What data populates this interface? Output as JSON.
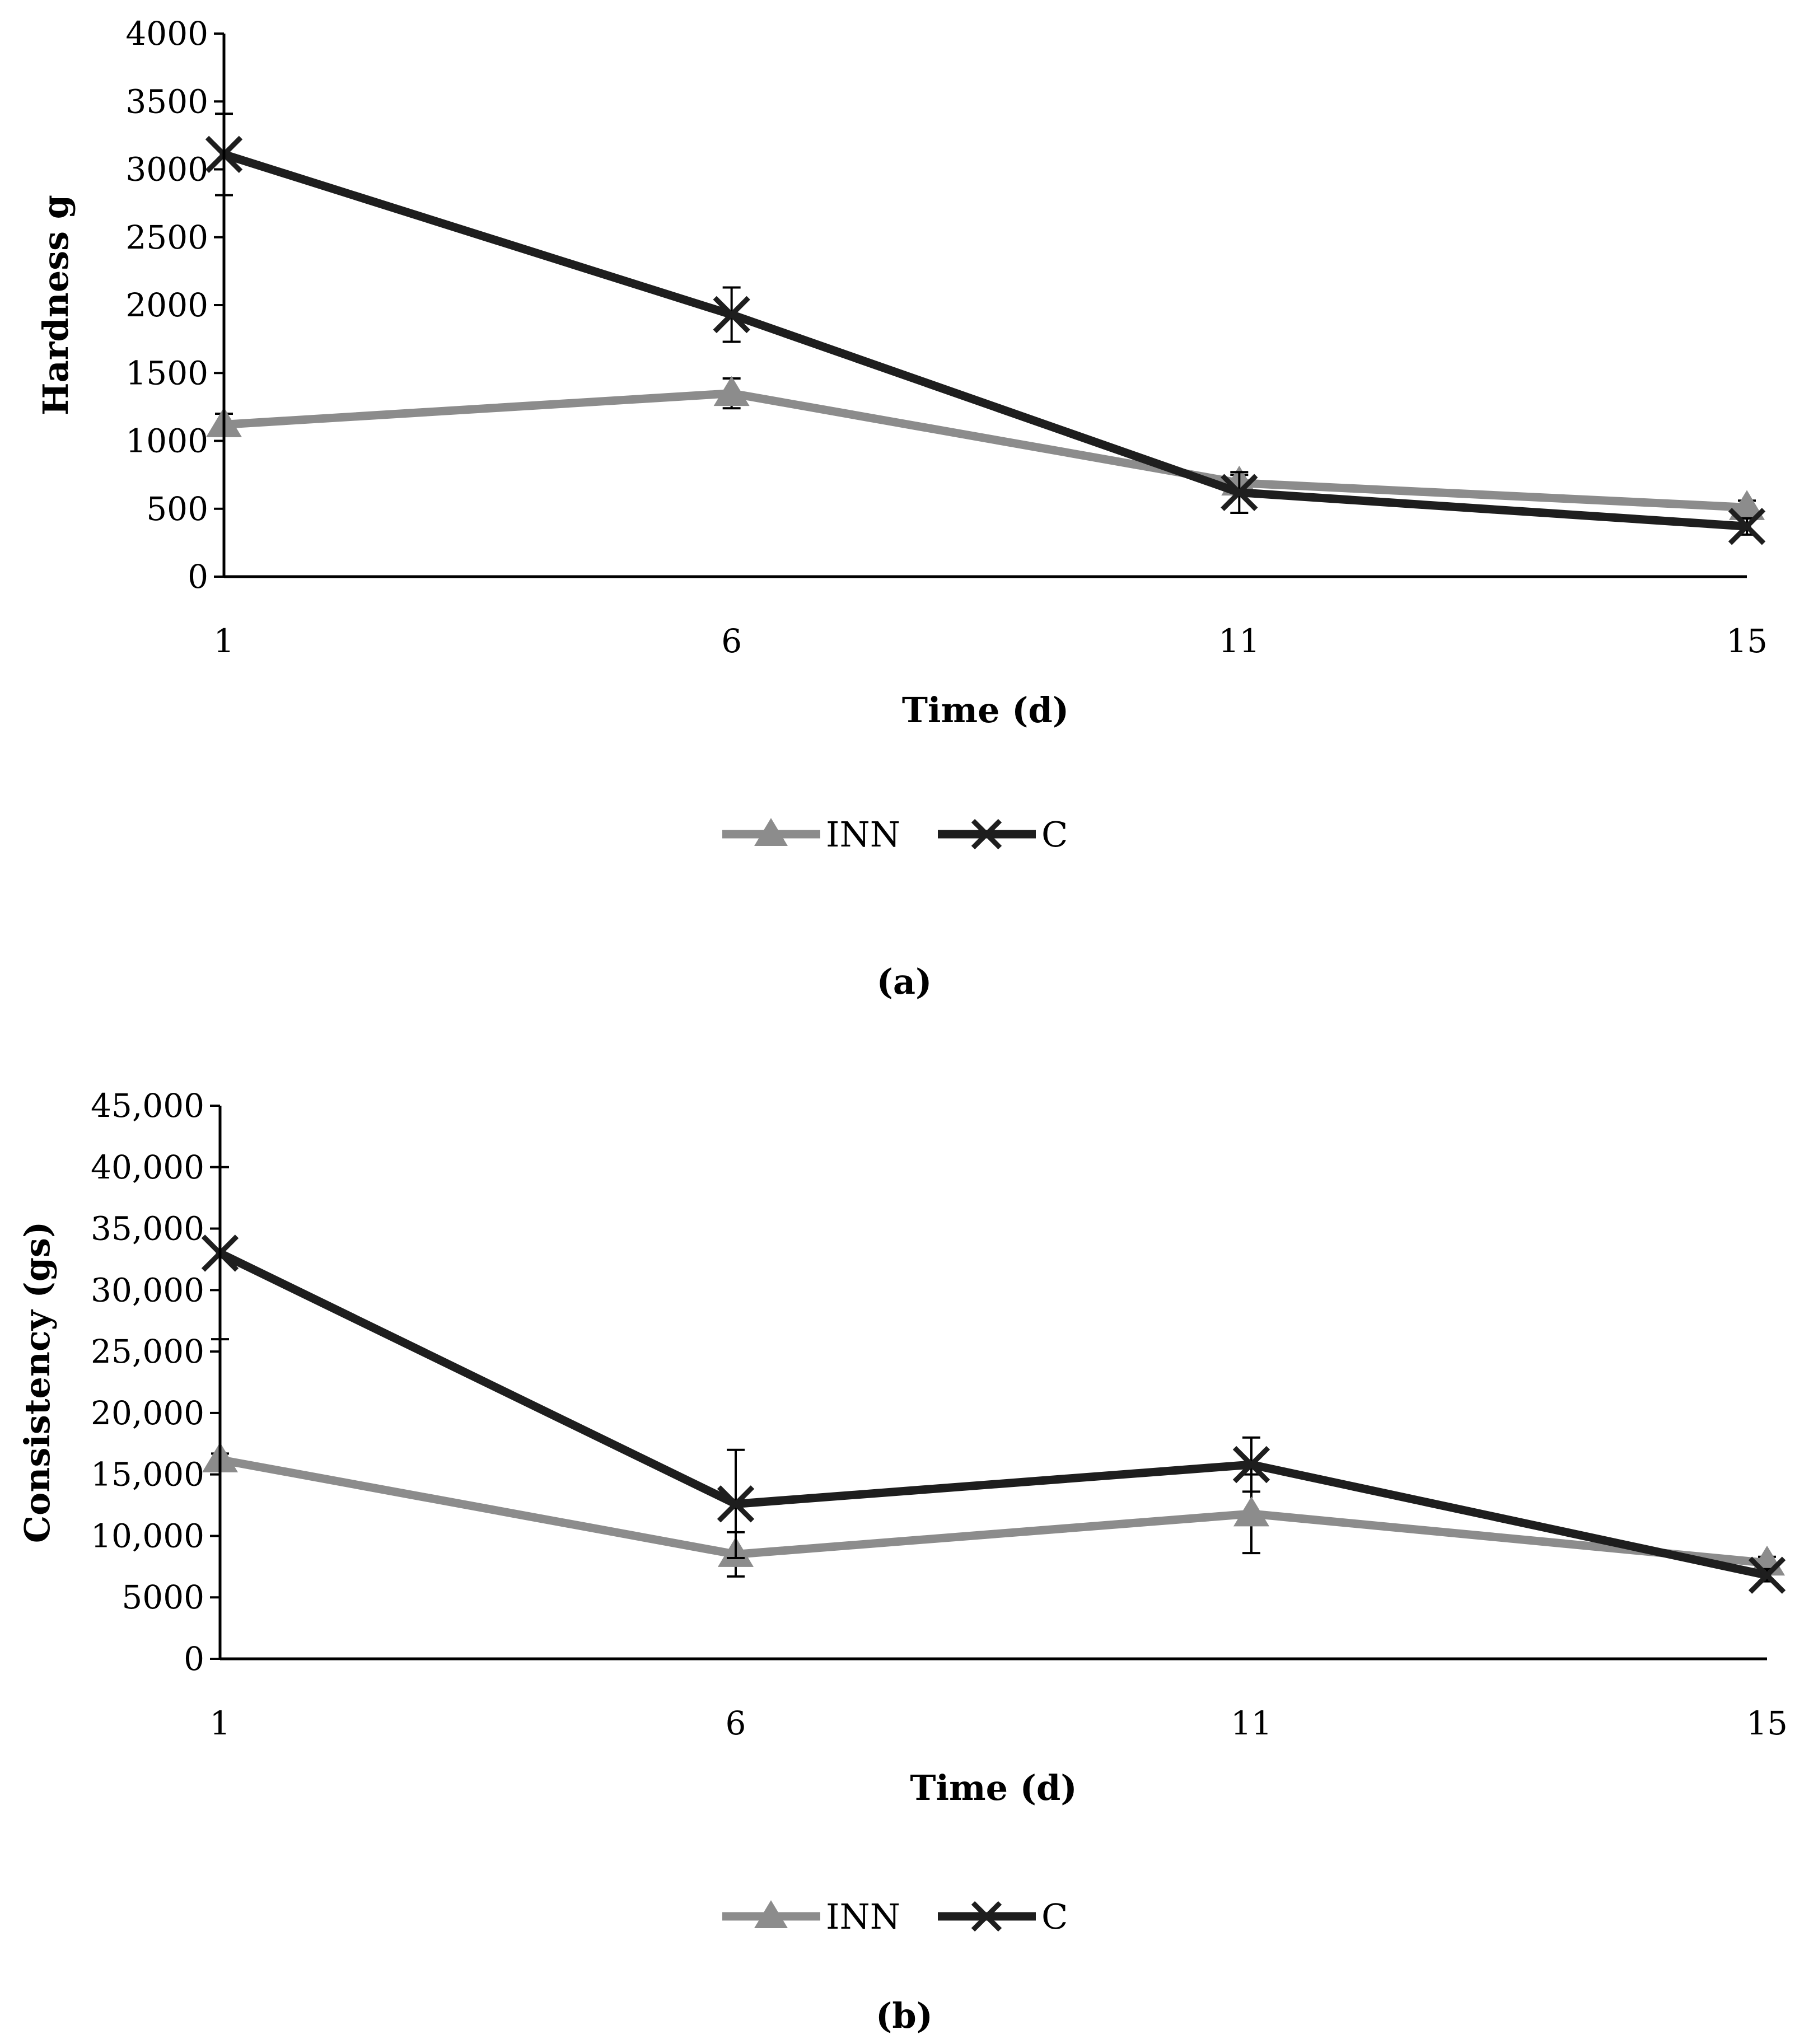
{
  "colors": {
    "INN": "#8c8c8c",
    "C": "#1e1e1e",
    "axis": "#000000"
  },
  "chart_data": [
    {
      "type": "line",
      "panel_label": "(a)",
      "categories": [
        "1",
        "6",
        "11",
        "15"
      ],
      "xlabel": "Time (d)",
      "ylabel": "Hardness g",
      "ylim": [
        0,
        4000
      ],
      "yticks": [
        0,
        500,
        1000,
        1500,
        2000,
        2500,
        3000,
        3500,
        4000
      ],
      "ytick_labels": [
        "0",
        "500",
        "1000",
        "1500",
        "2000",
        "2500",
        "3000",
        "3500",
        "4000"
      ],
      "grid": false,
      "legend_position": "bottom",
      "series": [
        {
          "name": "INN",
          "marker": "triangle",
          "values": [
            1120,
            1350,
            690,
            510
          ],
          "errors": [
            80,
            110,
            60,
            50
          ]
        },
        {
          "name": "C",
          "marker": "x",
          "values": [
            3110,
            1930,
            620,
            370
          ],
          "errors": [
            300,
            200,
            150,
            60
          ]
        }
      ]
    },
    {
      "type": "line",
      "panel_label": "(b)",
      "categories": [
        "1",
        "6",
        "11",
        "15"
      ],
      "xlabel": "Time (d)",
      "ylabel": "Consistency (gs)",
      "ylim": [
        0,
        45000
      ],
      "yticks": [
        0,
        5000,
        10000,
        15000,
        20000,
        25000,
        30000,
        35000,
        40000,
        45000
      ],
      "ytick_labels": [
        "0",
        "5000",
        "10,000",
        "15,000",
        "20,000",
        "25,000",
        "30,000",
        "35,000",
        "40,000",
        "45,000"
      ],
      "grid": false,
      "legend_position": "bottom",
      "series": [
        {
          "name": "INN",
          "marker": "triangle",
          "values": [
            16200,
            8500,
            11800,
            7800
          ],
          "errors": [
            500,
            1800,
            3200,
            500
          ]
        },
        {
          "name": "C",
          "marker": "x",
          "values": [
            33000,
            12600,
            15800,
            6800
          ],
          "errors": [
            7000,
            4400,
            2200,
            500
          ]
        }
      ]
    }
  ]
}
